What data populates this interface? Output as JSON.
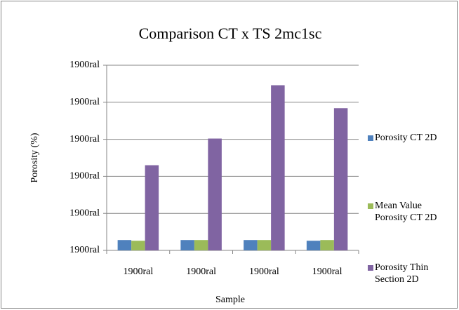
{
  "chart_data": {
    "type": "bar",
    "title": "Comparison CT x TS 2mc1sc",
    "x_label": "Sample",
    "y_label": "Porosity (%)",
    "categories": [
      "1900ral",
      "1900ral",
      "1900ral",
      "1900ral"
    ],
    "series": [
      {
        "name": "Porosity CT 2D",
        "color": "#4f81bd",
        "values": [
          1.4,
          1.4,
          1.4,
          1.3
        ]
      },
      {
        "name": "Mean Value Porosity CT 2D",
        "color": "#9bbb59",
        "values": [
          1.3,
          1.4,
          1.4,
          1.4
        ]
      },
      {
        "name": "Porosity Thin Section 2D",
        "color": "#8064a2",
        "values": [
          11.5,
          15.1,
          22.3,
          19.2
        ]
      }
    ],
    "ylim": [
      0,
      25
    ],
    "yticks": [
      {
        "value": 0,
        "label": "1900ral"
      },
      {
        "value": 5,
        "label": "1900ral"
      },
      {
        "value": 10,
        "label": "1900ral"
      },
      {
        "value": 15,
        "label": "1900ral"
      },
      {
        "value": 20,
        "label": "1900ral"
      },
      {
        "value": 25,
        "label": "1900ral"
      }
    ],
    "grid": true,
    "legend": "right"
  }
}
